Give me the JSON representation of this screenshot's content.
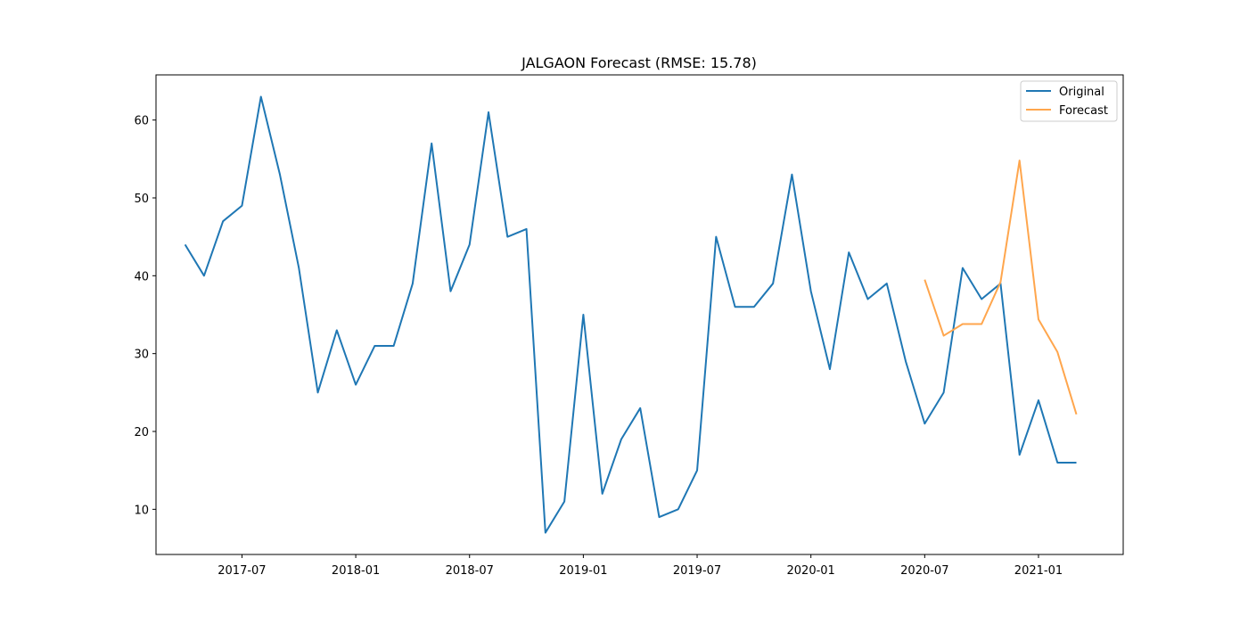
{
  "chart_data": {
    "type": "line",
    "title": "JALGAON Forecast (RMSE: 15.78)",
    "xlabel": "",
    "ylabel": "",
    "x_ticks": [
      "2017-07",
      "2018-01",
      "2018-07",
      "2019-01",
      "2019-07",
      "2020-01",
      "2020-07",
      "2021-01"
    ],
    "y_ticks": [
      10,
      20,
      30,
      40,
      50,
      60
    ],
    "xlim": [
      "2017-02-15",
      "2021-05-15"
    ],
    "ylim": [
      4.2,
      65.8
    ],
    "grid": false,
    "legend": "top-right",
    "series": [
      {
        "name": "Original",
        "color": "#1f77b4",
        "x": [
          "2017-04",
          "2017-05",
          "2017-06",
          "2017-07",
          "2017-08",
          "2017-09",
          "2017-10",
          "2017-11",
          "2017-12",
          "2018-01",
          "2018-02",
          "2018-03",
          "2018-04",
          "2018-05",
          "2018-06",
          "2018-07",
          "2018-08",
          "2018-09",
          "2018-10",
          "2018-11",
          "2018-12",
          "2019-01",
          "2019-02",
          "2019-03",
          "2019-04",
          "2019-05",
          "2019-06",
          "2019-07",
          "2019-08",
          "2019-09",
          "2019-10",
          "2019-11",
          "2019-12",
          "2020-01",
          "2020-02",
          "2020-03",
          "2020-04",
          "2020-05",
          "2020-06",
          "2020-07",
          "2020-08",
          "2020-09",
          "2020-10",
          "2020-11",
          "2020-12",
          "2021-01",
          "2021-02",
          "2021-03"
        ],
        "values": [
          44,
          40,
          47,
          49,
          63,
          53,
          41,
          25,
          33,
          26,
          31,
          31,
          39,
          57,
          38,
          44,
          61,
          45,
          46,
          7,
          11,
          35,
          12,
          19,
          23,
          9,
          10,
          15,
          45,
          36,
          36,
          39,
          53,
          38,
          28,
          43,
          37,
          39,
          29,
          21,
          25,
          41,
          37,
          39,
          17,
          24,
          16,
          16
        ]
      },
      {
        "name": "Forecast",
        "color": "#ffa64d",
        "x": [
          "2020-07",
          "2020-08",
          "2020-09",
          "2020-10",
          "2020-11",
          "2020-12",
          "2021-01",
          "2021-02",
          "2021-03"
        ],
        "values": [
          39.5,
          32.3,
          33.8,
          33.8,
          39.2,
          54.8,
          34.4,
          30.2,
          22.2
        ]
      }
    ]
  }
}
